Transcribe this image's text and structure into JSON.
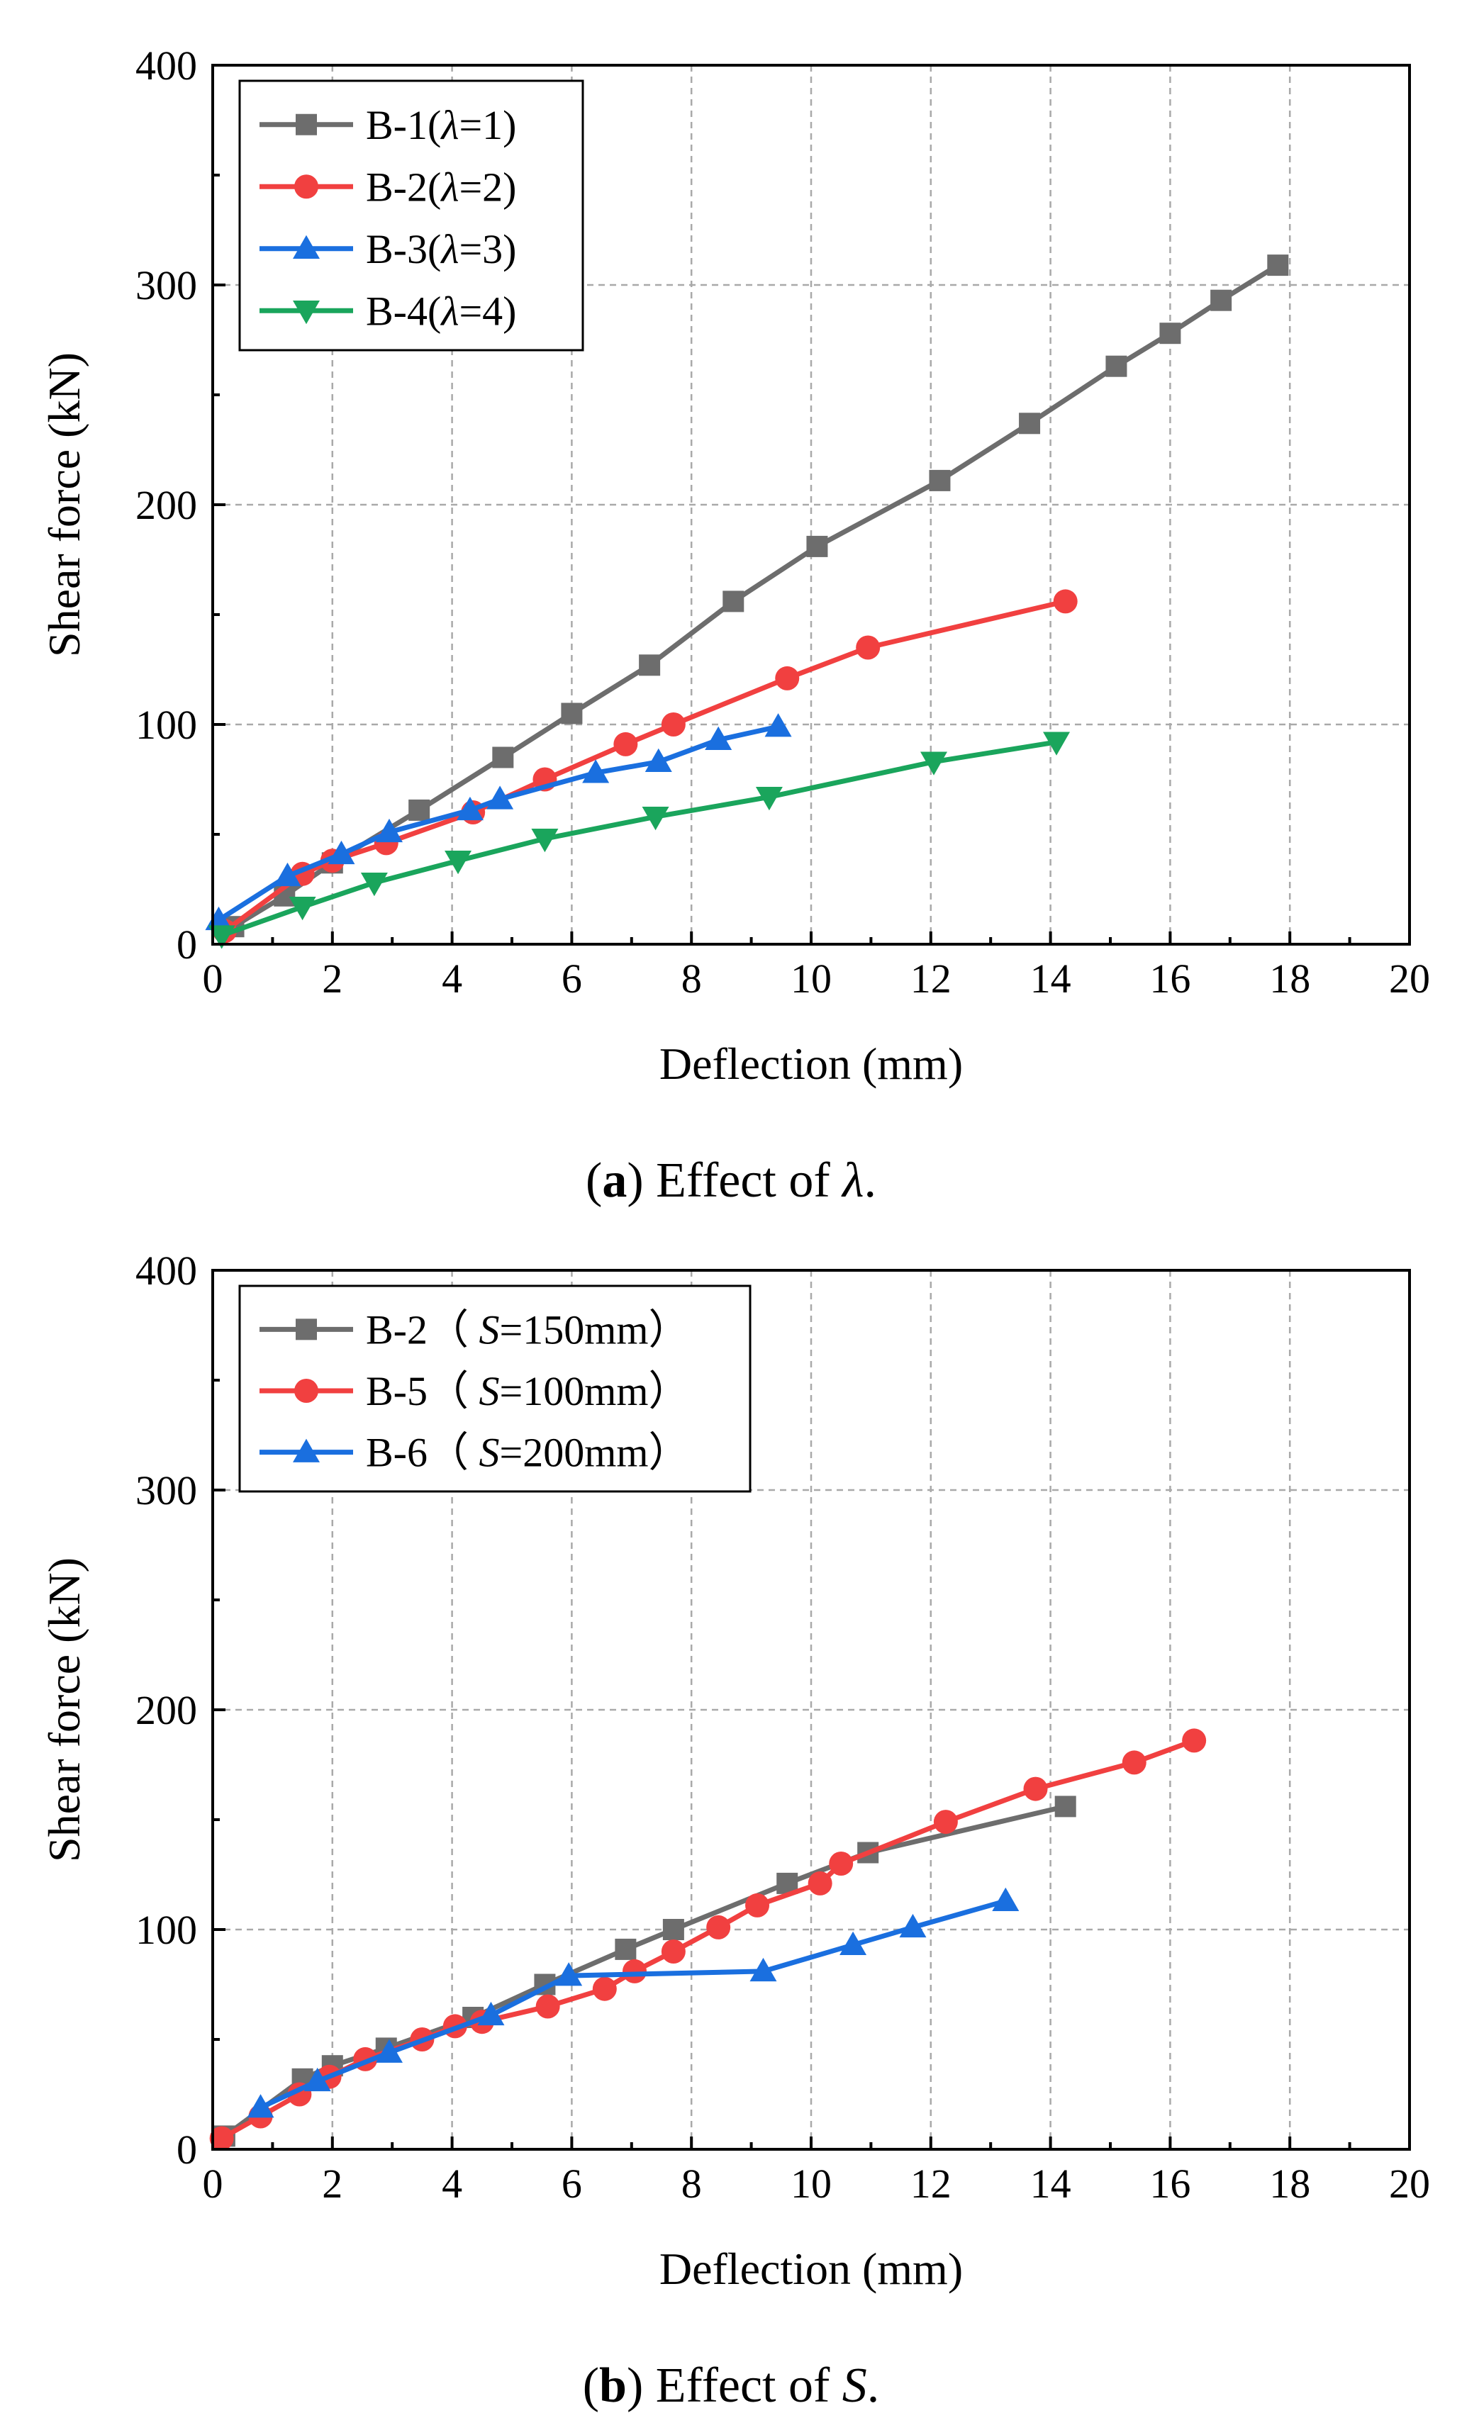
{
  "chart_data": [
    {
      "type": "line",
      "panel": "a",
      "xlabel": "Deflection (mm)",
      "ylabel": "Shear force (kN)",
      "xlim": [
        0,
        20
      ],
      "ylim": [
        0,
        400
      ],
      "xticks": [
        "0",
        "2",
        "4",
        "6",
        "8",
        "10",
        "12",
        "14",
        "16",
        "18",
        "20"
      ],
      "yticks": [
        "0",
        "100",
        "200",
        "300",
        "400"
      ],
      "grid": true,
      "legend_position": "top-left",
      "caption": {
        "label": "(a)",
        "text": "Effect of λ."
      },
      "series": [
        {
          "name": "B-1(λ=1)",
          "color": "#6d6d6d",
          "marker": "square",
          "points": [
            [
              0.35,
              8
            ],
            [
              1.2,
              22
            ],
            [
              2.0,
              37
            ],
            [
              3.45,
              61
            ],
            [
              4.85,
              85
            ],
            [
              6.0,
              105
            ],
            [
              7.3,
              127
            ],
            [
              8.7,
              156
            ],
            [
              10.1,
              181
            ],
            [
              12.15,
              211
            ],
            [
              13.65,
              237
            ],
            [
              15.1,
              263
            ],
            [
              16.0,
              278
            ],
            [
              16.85,
              293
            ],
            [
              17.8,
              309
            ]
          ]
        },
        {
          "name": "B-2(λ=2)",
          "color": "#f14040",
          "marker": "circle",
          "points": [
            [
              0.2,
              6
            ],
            [
              1.5,
              32
            ],
            [
              2.0,
              38
            ],
            [
              2.9,
              46
            ],
            [
              4.35,
              60
            ],
            [
              5.55,
              75
            ],
            [
              6.9,
              91
            ],
            [
              7.7,
              100
            ],
            [
              9.6,
              121
            ],
            [
              10.95,
              135
            ],
            [
              14.25,
              156
            ]
          ]
        },
        {
          "name": "B-3(λ=3)",
          "color": "#1a6fdf",
          "marker": "triangle-up",
          "points": [
            [
              0.1,
              11
            ],
            [
              1.25,
              31
            ],
            [
              2.15,
              41
            ],
            [
              2.95,
              51
            ],
            [
              4.3,
              61
            ],
            [
              4.8,
              66
            ],
            [
              6.4,
              78
            ],
            [
              7.45,
              83
            ],
            [
              8.45,
              93
            ],
            [
              9.45,
              99
            ]
          ]
        },
        {
          "name": "B-4(λ=4)",
          "color": "#1aa55c",
          "marker": "triangle-down",
          "points": [
            [
              0.15,
              4
            ],
            [
              1.5,
              17
            ],
            [
              2.7,
              28
            ],
            [
              4.1,
              38
            ],
            [
              5.55,
              48
            ],
            [
              7.4,
              58
            ],
            [
              9.3,
              67
            ],
            [
              12.05,
              83
            ],
            [
              14.1,
              92
            ]
          ]
        }
      ]
    },
    {
      "type": "line",
      "panel": "b",
      "xlabel": "Deflection (mm)",
      "ylabel": "Shear force (kN)",
      "xlim": [
        0,
        20
      ],
      "ylim": [
        0,
        400
      ],
      "xticks": [
        "0",
        "2",
        "4",
        "6",
        "8",
        "10",
        "12",
        "14",
        "16",
        "18",
        "20"
      ],
      "yticks": [
        "0",
        "100",
        "200",
        "300",
        "400"
      ],
      "grid": true,
      "legend_position": "top-left",
      "caption": {
        "label": "(b)",
        "text": "Effect of S."
      },
      "series": [
        {
          "name": "B-2（ S=150mm）",
          "color": "#6d6d6d",
          "marker": "square",
          "points": [
            [
              0.2,
              6
            ],
            [
              1.5,
              32
            ],
            [
              2.0,
              38
            ],
            [
              2.9,
              46
            ],
            [
              4.35,
              60
            ],
            [
              5.55,
              75
            ],
            [
              6.9,
              91
            ],
            [
              7.7,
              100
            ],
            [
              9.6,
              121
            ],
            [
              10.95,
              135
            ],
            [
              14.25,
              156
            ]
          ]
        },
        {
          "name": "B-5（ S=100mm）",
          "color": "#f14040",
          "marker": "circle",
          "points": [
            [
              0.15,
              5
            ],
            [
              0.8,
              15
            ],
            [
              1.45,
              25
            ],
            [
              1.95,
              33
            ],
            [
              2.55,
              41
            ],
            [
              3.5,
              50
            ],
            [
              4.05,
              56
            ],
            [
              4.5,
              58
            ],
            [
              5.6,
              65
            ],
            [
              6.55,
              73
            ],
            [
              7.05,
              81
            ],
            [
              7.7,
              90
            ],
            [
              8.45,
              101
            ],
            [
              9.1,
              111
            ],
            [
              10.15,
              121
            ],
            [
              10.5,
              130
            ],
            [
              12.25,
              149
            ],
            [
              13.75,
              164
            ],
            [
              15.4,
              176
            ],
            [
              16.4,
              186
            ]
          ]
        },
        {
          "name": "B-6（ S=200mm）",
          "color": "#1a6fdf",
          "marker": "triangle-up",
          "points": [
            [
              0.8,
              19
            ],
            [
              1.75,
              31
            ],
            [
              2.95,
              44
            ],
            [
              4.65,
              61
            ],
            [
              5.95,
              79
            ],
            [
              9.2,
              81
            ],
            [
              10.7,
              93
            ],
            [
              11.7,
              101
            ],
            [
              13.25,
              113
            ]
          ]
        }
      ]
    }
  ]
}
